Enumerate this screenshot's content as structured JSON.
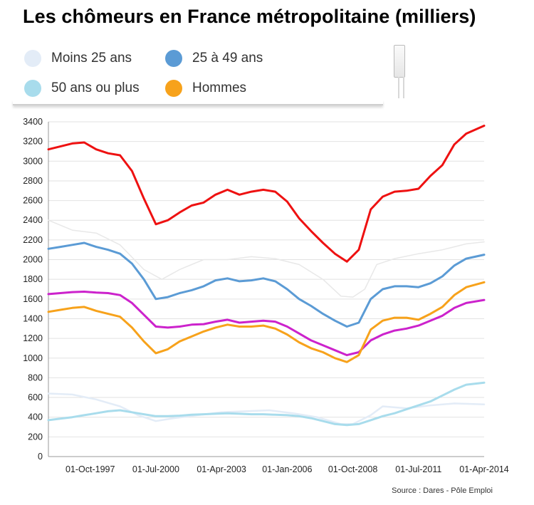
{
  "chart_data": {
    "type": "line",
    "title": "Les chômeurs en France métropolitaine (milliers)",
    "source": "Source : Dares - Pôle Emploi",
    "ylim": [
      0,
      3400
    ],
    "y_ticks": [
      0,
      200,
      400,
      600,
      800,
      1000,
      1200,
      1400,
      1600,
      1800,
      2000,
      2200,
      2400,
      2600,
      2800,
      3000,
      3200,
      3400
    ],
    "x_range": [
      1996.0,
      2014.25
    ],
    "x_ticks": [
      {
        "label": "01-Oct-1997",
        "x": 1997.75
      },
      {
        "label": "01-Jul-2000",
        "x": 2000.5
      },
      {
        "label": "01-Apr-2003",
        "x": 2003.25
      },
      {
        "label": "01-Jan-2006",
        "x": 2006.0
      },
      {
        "label": "01-Oct-2008",
        "x": 2008.75
      },
      {
        "label": "01-Jul-2011",
        "x": 2011.5
      },
      {
        "label": "01-Apr-2014",
        "x": 2014.25
      }
    ],
    "grid": true,
    "legend_position": "top-left",
    "legend": [
      {
        "label": "Moins 25 ans",
        "color": "#e3ecf7"
      },
      {
        "label": "25 à 49 ans",
        "color": "#5b9bd5"
      },
      {
        "label": "50 ans ou plus",
        "color": "#a8dcec"
      },
      {
        "label": "Hommes",
        "color": "#f7a21b"
      }
    ],
    "series": [
      {
        "color": "#e8e8e8",
        "width": 1.5,
        "x": [
          1996.0,
          1997.0,
          1998.0,
          1999.0,
          2000.0,
          2000.75,
          2001.5,
          2002.5,
          2003.5,
          2004.5,
          2005.5,
          2006.5,
          2007.5,
          2008.25,
          2008.75,
          2009.25,
          2009.75,
          2010.5,
          2011.5,
          2012.5,
          2013.5,
          2014.25
        ],
        "values": [
          2400,
          2300,
          2270,
          2150,
          1900,
          1800,
          1900,
          2000,
          2000,
          2030,
          2010,
          1950,
          1800,
          1630,
          1620,
          1700,
          1950,
          2010,
          2060,
          2100,
          2160,
          2180
        ]
      },
      {
        "color": "#e3ecf7",
        "width": 2.5,
        "x": [
          1996.0,
          1997.0,
          1998.0,
          1999.0,
          1999.75,
          2000.5,
          2001.25,
          2002.25,
          2003.25,
          2004.25,
          2005.25,
          2006.25,
          2007.25,
          2008.25,
          2008.75,
          2009.5,
          2010.0,
          2011.0,
          2012.0,
          2013.0,
          2014.25
        ],
        "values": [
          640,
          630,
          580,
          510,
          420,
          360,
          390,
          420,
          450,
          460,
          470,
          440,
          400,
          330,
          330,
          420,
          510,
          490,
          520,
          540,
          530
        ]
      },
      {
        "color": "#5b9bd5",
        "width": 3,
        "x": [
          1996.0,
          1996.5,
          1997.0,
          1997.5,
          1998.0,
          1998.5,
          1999.0,
          1999.5,
          2000.0,
          2000.5,
          2001.0,
          2001.5,
          2002.0,
          2002.5,
          2003.0,
          2003.5,
          2004.0,
          2004.5,
          2005.0,
          2005.5,
          2006.0,
          2006.5,
          2007.0,
          2007.5,
          2008.0,
          2008.5,
          2009.0,
          2009.5,
          2010.0,
          2010.5,
          2011.0,
          2011.5,
          2012.0,
          2012.5,
          2013.0,
          2013.5,
          2014.25
        ],
        "values": [
          2110,
          2130,
          2150,
          2170,
          2130,
          2100,
          2060,
          1960,
          1800,
          1600,
          1620,
          1660,
          1690,
          1730,
          1790,
          1810,
          1780,
          1790,
          1810,
          1780,
          1700,
          1600,
          1530,
          1450,
          1380,
          1320,
          1360,
          1600,
          1700,
          1730,
          1730,
          1720,
          1760,
          1830,
          1940,
          2010,
          2050
        ]
      },
      {
        "color": "#cc22cc",
        "width": 3,
        "x": [
          1996.0,
          1996.5,
          1997.0,
          1997.5,
          1998.0,
          1998.5,
          1999.0,
          1999.5,
          2000.0,
          2000.5,
          2001.0,
          2001.5,
          2002.0,
          2002.5,
          2003.0,
          2003.5,
          2004.0,
          2004.5,
          2005.0,
          2005.5,
          2006.0,
          2006.5,
          2007.0,
          2007.5,
          2008.0,
          2008.5,
          2009.0,
          2009.5,
          2010.0,
          2010.5,
          2011.0,
          2011.5,
          2012.0,
          2012.5,
          2013.0,
          2013.5,
          2014.25
        ],
        "values": [
          1650,
          1660,
          1670,
          1675,
          1665,
          1660,
          1640,
          1560,
          1440,
          1320,
          1310,
          1320,
          1340,
          1345,
          1370,
          1390,
          1360,
          1370,
          1380,
          1370,
          1320,
          1250,
          1180,
          1130,
          1080,
          1030,
          1060,
          1180,
          1240,
          1280,
          1300,
          1330,
          1380,
          1430,
          1510,
          1560,
          1590
        ]
      },
      {
        "color": "#f7a21b",
        "width": 3,
        "x": [
          1996.0,
          1996.5,
          1997.0,
          1997.5,
          1998.0,
          1998.5,
          1999.0,
          1999.5,
          2000.0,
          2000.5,
          2001.0,
          2001.5,
          2002.0,
          2002.5,
          2003.0,
          2003.5,
          2004.0,
          2004.5,
          2005.0,
          2005.5,
          2006.0,
          2006.5,
          2007.0,
          2007.5,
          2008.0,
          2008.5,
          2009.0,
          2009.5,
          2010.0,
          2010.5,
          2011.0,
          2011.5,
          2012.0,
          2012.5,
          2013.0,
          2013.5,
          2014.25
        ],
        "values": [
          1470,
          1490,
          1510,
          1520,
          1480,
          1450,
          1420,
          1310,
          1170,
          1050,
          1090,
          1170,
          1220,
          1270,
          1310,
          1340,
          1320,
          1320,
          1330,
          1300,
          1240,
          1160,
          1100,
          1060,
          1000,
          960,
          1030,
          1290,
          1380,
          1410,
          1410,
          1390,
          1450,
          1520,
          1640,
          1720,
          1770
        ]
      },
      {
        "color": "#a8dcec",
        "width": 3,
        "x": [
          1996.0,
          1996.5,
          1997.0,
          1997.5,
          1998.0,
          1998.5,
          1999.0,
          1999.5,
          2000.0,
          2000.5,
          2001.0,
          2001.5,
          2002.0,
          2002.5,
          2003.0,
          2003.5,
          2004.0,
          2004.5,
          2005.0,
          2005.5,
          2006.0,
          2006.5,
          2007.0,
          2007.5,
          2008.0,
          2008.5,
          2009.0,
          2009.5,
          2010.0,
          2010.5,
          2011.0,
          2011.5,
          2012.0,
          2012.5,
          2013.0,
          2013.5,
          2014.25
        ],
        "values": [
          370,
          385,
          400,
          420,
          440,
          460,
          470,
          450,
          430,
          410,
          410,
          415,
          425,
          430,
          435,
          440,
          435,
          430,
          430,
          425,
          420,
          410,
          390,
          360,
          330,
          320,
          330,
          370,
          410,
          440,
          480,
          520,
          560,
          620,
          680,
          730,
          750
        ]
      },
      {
        "color": "#ee1111",
        "width": 3,
        "x": [
          1996.0,
          1996.5,
          1997.0,
          1997.5,
          1998.0,
          1998.5,
          1999.0,
          1999.5,
          2000.0,
          2000.5,
          2001.0,
          2001.5,
          2002.0,
          2002.5,
          2003.0,
          2003.5,
          2004.0,
          2004.5,
          2005.0,
          2005.5,
          2006.0,
          2006.5,
          2007.0,
          2007.5,
          2008.0,
          2008.5,
          2009.0,
          2009.5,
          2010.0,
          2010.5,
          2011.0,
          2011.5,
          2012.0,
          2012.5,
          2013.0,
          2013.5,
          2014.25
        ],
        "values": [
          3120,
          3150,
          3180,
          3190,
          3120,
          3080,
          3060,
          2900,
          2620,
          2360,
          2400,
          2480,
          2550,
          2580,
          2660,
          2710,
          2660,
          2690,
          2710,
          2690,
          2590,
          2420,
          2290,
          2170,
          2060,
          1980,
          2100,
          2510,
          2640,
          2690,
          2700,
          2720,
          2850,
          2960,
          3170,
          3280,
          3360
        ]
      }
    ]
  }
}
